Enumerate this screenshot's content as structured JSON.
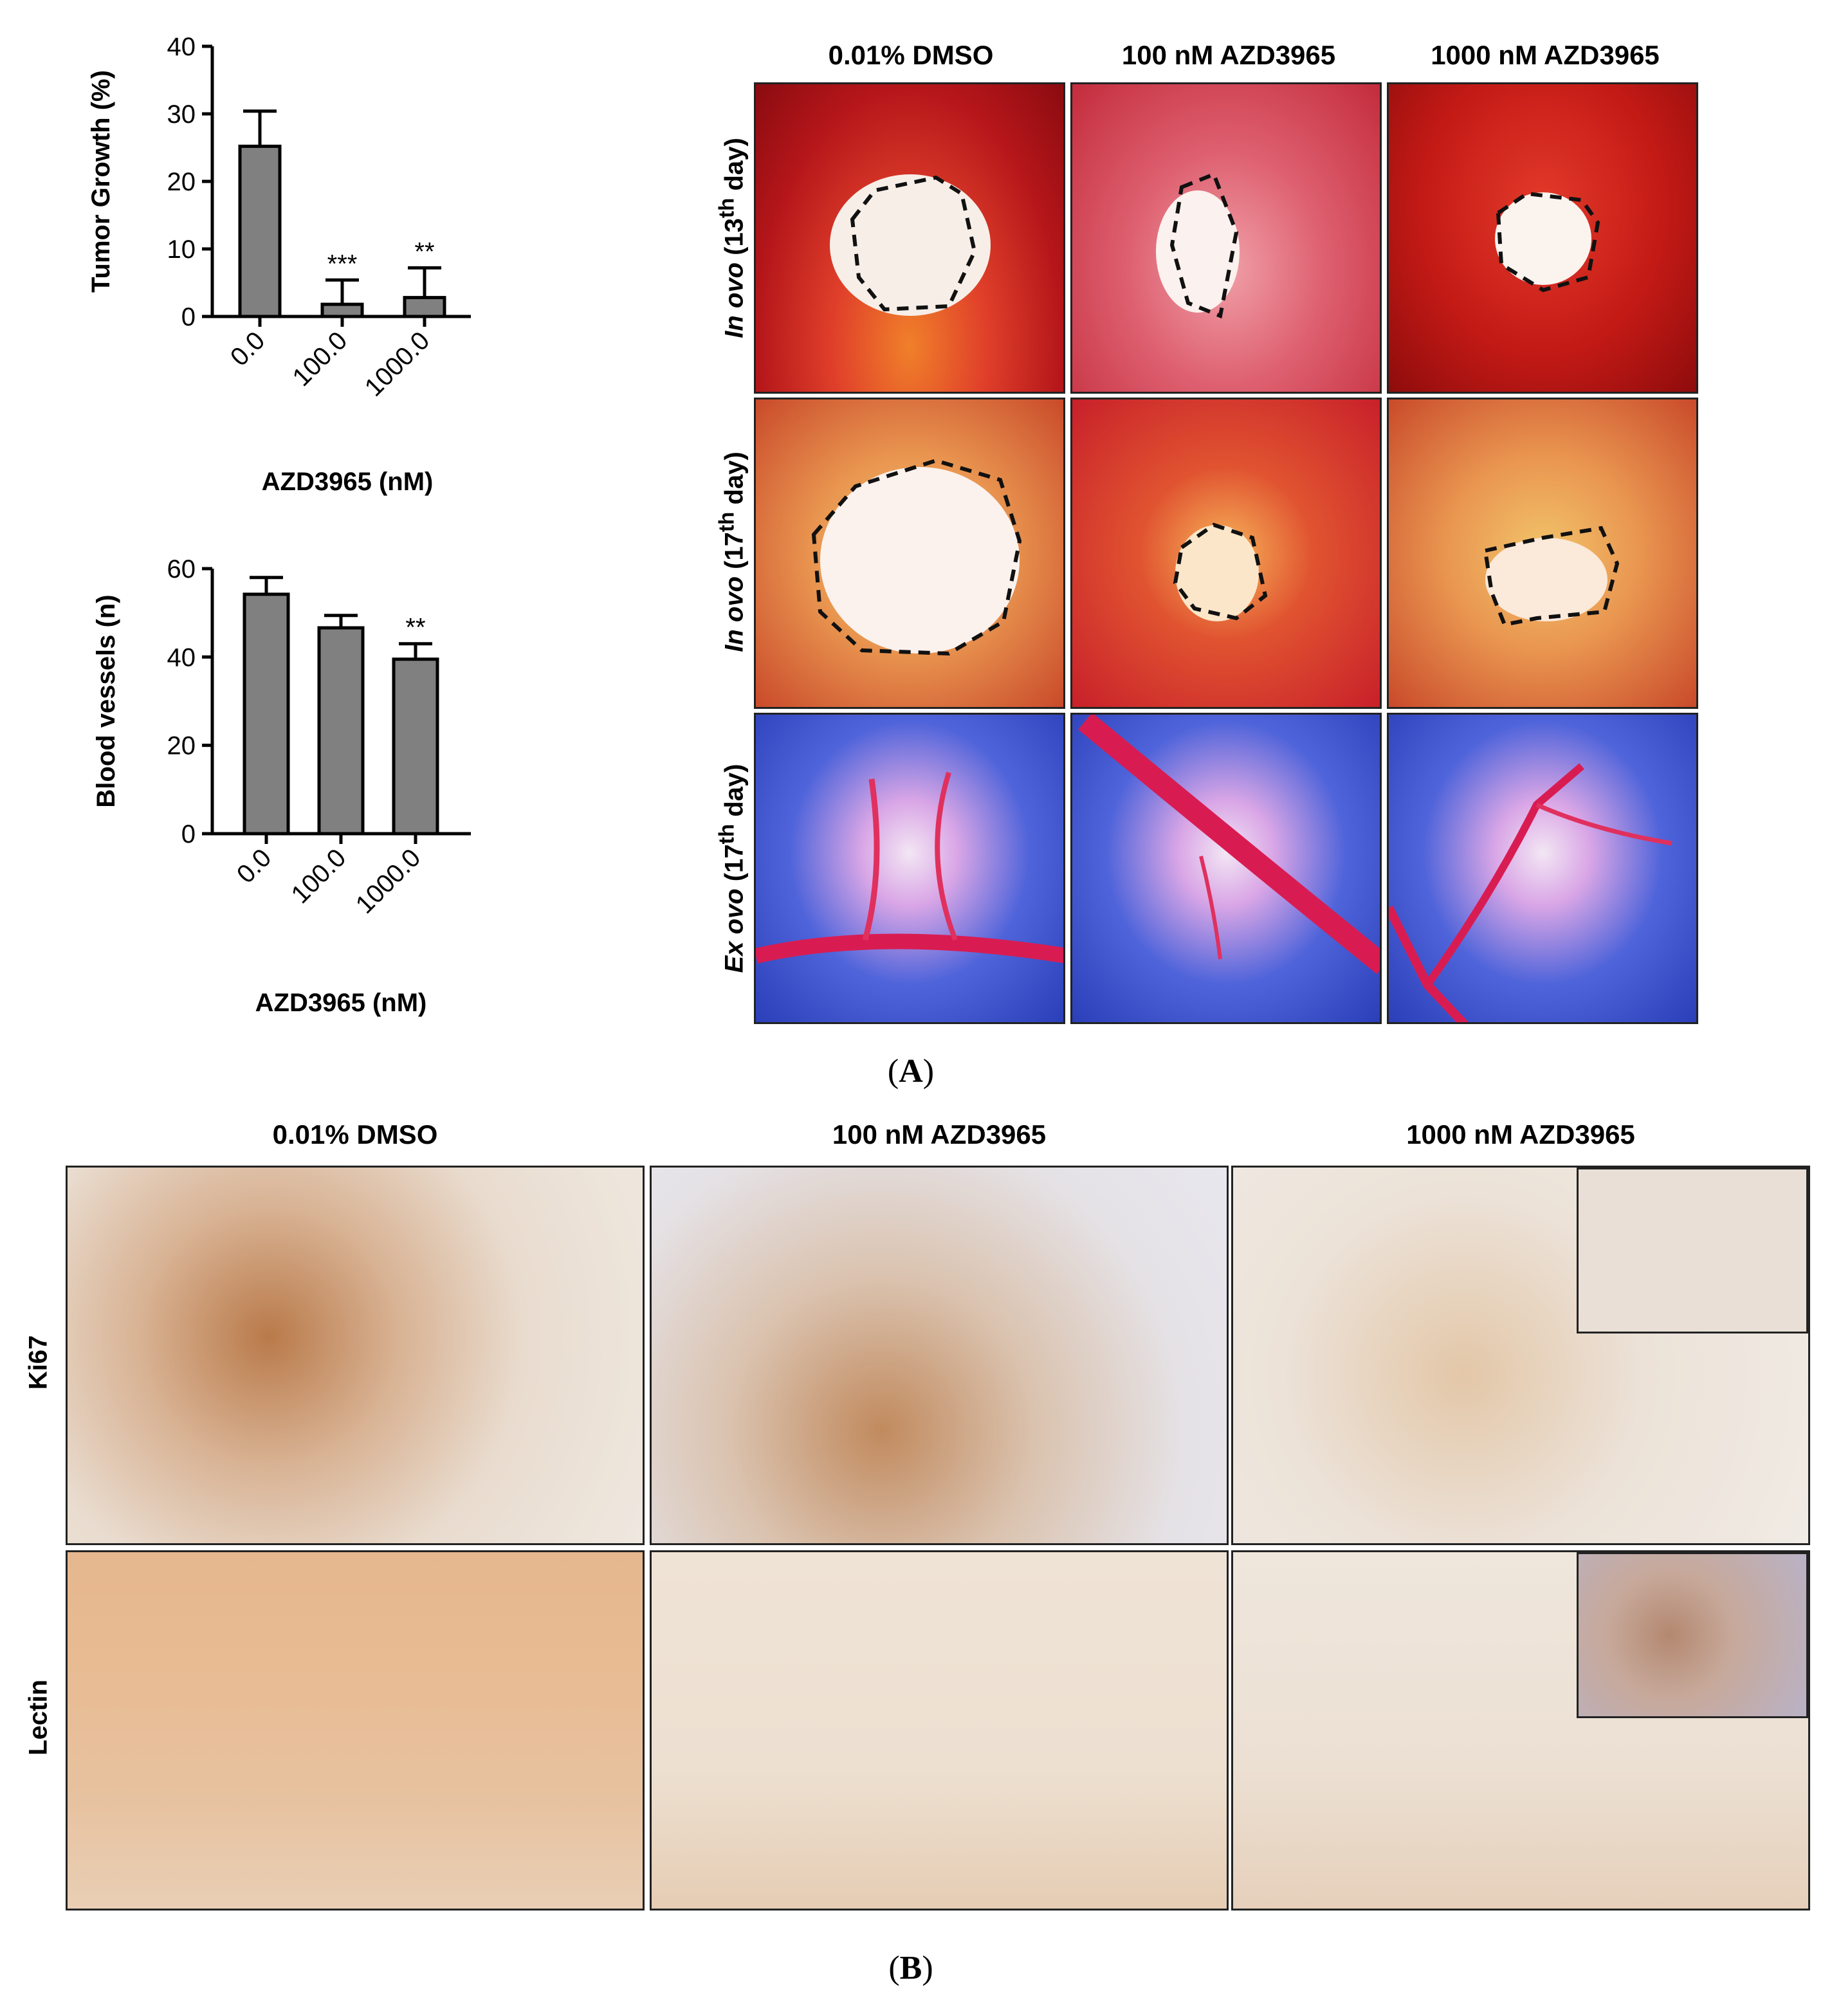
{
  "panel_a": {
    "label": "A",
    "headers": [
      "0.01% DMSO",
      "100 nM AZD3965",
      "1000 nM AZD3965"
    ],
    "row_labels": [
      {
        "italic": "In ovo",
        "text": " (13",
        "sup": "th",
        "tail": " day)"
      },
      {
        "italic": "In ovo",
        "text": " (17",
        "sup": "th",
        "tail": " day)"
      },
      {
        "italic": "Ex ovo",
        "text": " (17",
        "sup": "th",
        "tail": " day)"
      }
    ]
  },
  "panel_b": {
    "label": "B",
    "headers": [
      "0.01% DMSO",
      "100 nM AZD3965",
      "1000 nM AZD3965"
    ],
    "row_labels": [
      "Ki67",
      "Lectin"
    ]
  },
  "chart_data": [
    {
      "type": "bar",
      "categories": [
        "0.0",
        "100.0",
        "1000.0"
      ],
      "values": [
        25.2,
        1.8,
        2.8
      ],
      "errors": [
        5.2,
        3.6,
        4.4
      ],
      "annotations": [
        "",
        "***",
        "**"
      ],
      "xlabel": "AZD3965 (nM)",
      "ylabel": "Tumor Growth (%)",
      "ylim": [
        0,
        40
      ],
      "yticks": [
        0,
        10,
        20,
        30,
        40
      ],
      "bar_color": "#808080"
    },
    {
      "type": "bar",
      "categories": [
        "0.0",
        "100.0",
        "1000.0"
      ],
      "values": [
        54.2,
        46.6,
        39.5
      ],
      "errors": [
        3.8,
        2.8,
        3.5
      ],
      "annotations": [
        "",
        "",
        "**"
      ],
      "xlabel": "AZD3965 (nM)",
      "ylabel": "Blood vessels (n)",
      "ylim": [
        0,
        60
      ],
      "yticks": [
        0,
        20,
        40,
        60
      ],
      "bar_color": "#808080"
    }
  ]
}
